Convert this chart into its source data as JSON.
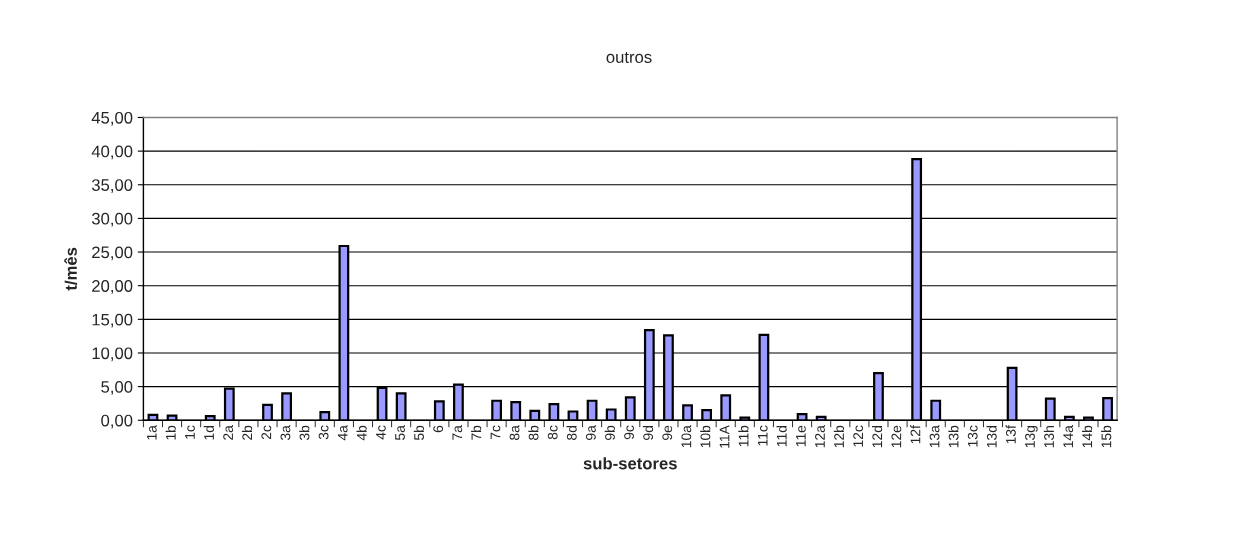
{
  "chart_data": {
    "type": "bar",
    "title": "outros",
    "xlabel": "sub-setores",
    "ylabel": "t/mês",
    "categories": [
      "1a",
      "1b",
      "1c",
      "1d",
      "2a",
      "2b",
      "2c",
      "3a",
      "3b",
      "3c",
      "4a",
      "4b",
      "4c",
      "5a",
      "5b",
      "6",
      "7a",
      "7b",
      "7c",
      "8a",
      "8b",
      "8c",
      "8d",
      "9a",
      "9b",
      "9c",
      "9d",
      "9e",
      "10a",
      "10b",
      "11A",
      "11b",
      "11c",
      "11d",
      "11e",
      "12a",
      "12b",
      "12c",
      "12d",
      "12e",
      "12f",
      "13a",
      "13b",
      "13c",
      "13d",
      "13f",
      "13g",
      "13h",
      "14a",
      "14b",
      "15b"
    ],
    "values": [
      0.8,
      0.7,
      0,
      0.6,
      4.7,
      0,
      2.3,
      4.0,
      0,
      1.2,
      25.9,
      0,
      4.8,
      4.0,
      0,
      2.8,
      5.3,
      0,
      2.9,
      2.7,
      1.4,
      2.4,
      1.3,
      2.9,
      1.6,
      3.4,
      13.4,
      12.6,
      2.2,
      1.5,
      3.7,
      0.4,
      12.7,
      0,
      0.9,
      0.5,
      0,
      0,
      7.0,
      0,
      38.8,
      2.9,
      0,
      0,
      0,
      7.8,
      0,
      3.2,
      0.5,
      0.4,
      3.3
    ],
    "color": "#9999ff",
    "ylim": [
      0,
      45
    ],
    "yticks": [
      {
        "value": 0,
        "label": "0,00"
      },
      {
        "value": 5,
        "label": "5,00"
      },
      {
        "value": 10,
        "label": "10,00"
      },
      {
        "value": 15,
        "label": "15,00"
      },
      {
        "value": 20,
        "label": "20,00"
      },
      {
        "value": 25,
        "label": "25,00"
      },
      {
        "value": 30,
        "label": "30,00"
      },
      {
        "value": 35,
        "label": "35,00"
      },
      {
        "value": 40,
        "label": "40,00"
      },
      {
        "value": 45,
        "label": "45,00"
      }
    ],
    "grid": "y",
    "legend": false
  }
}
